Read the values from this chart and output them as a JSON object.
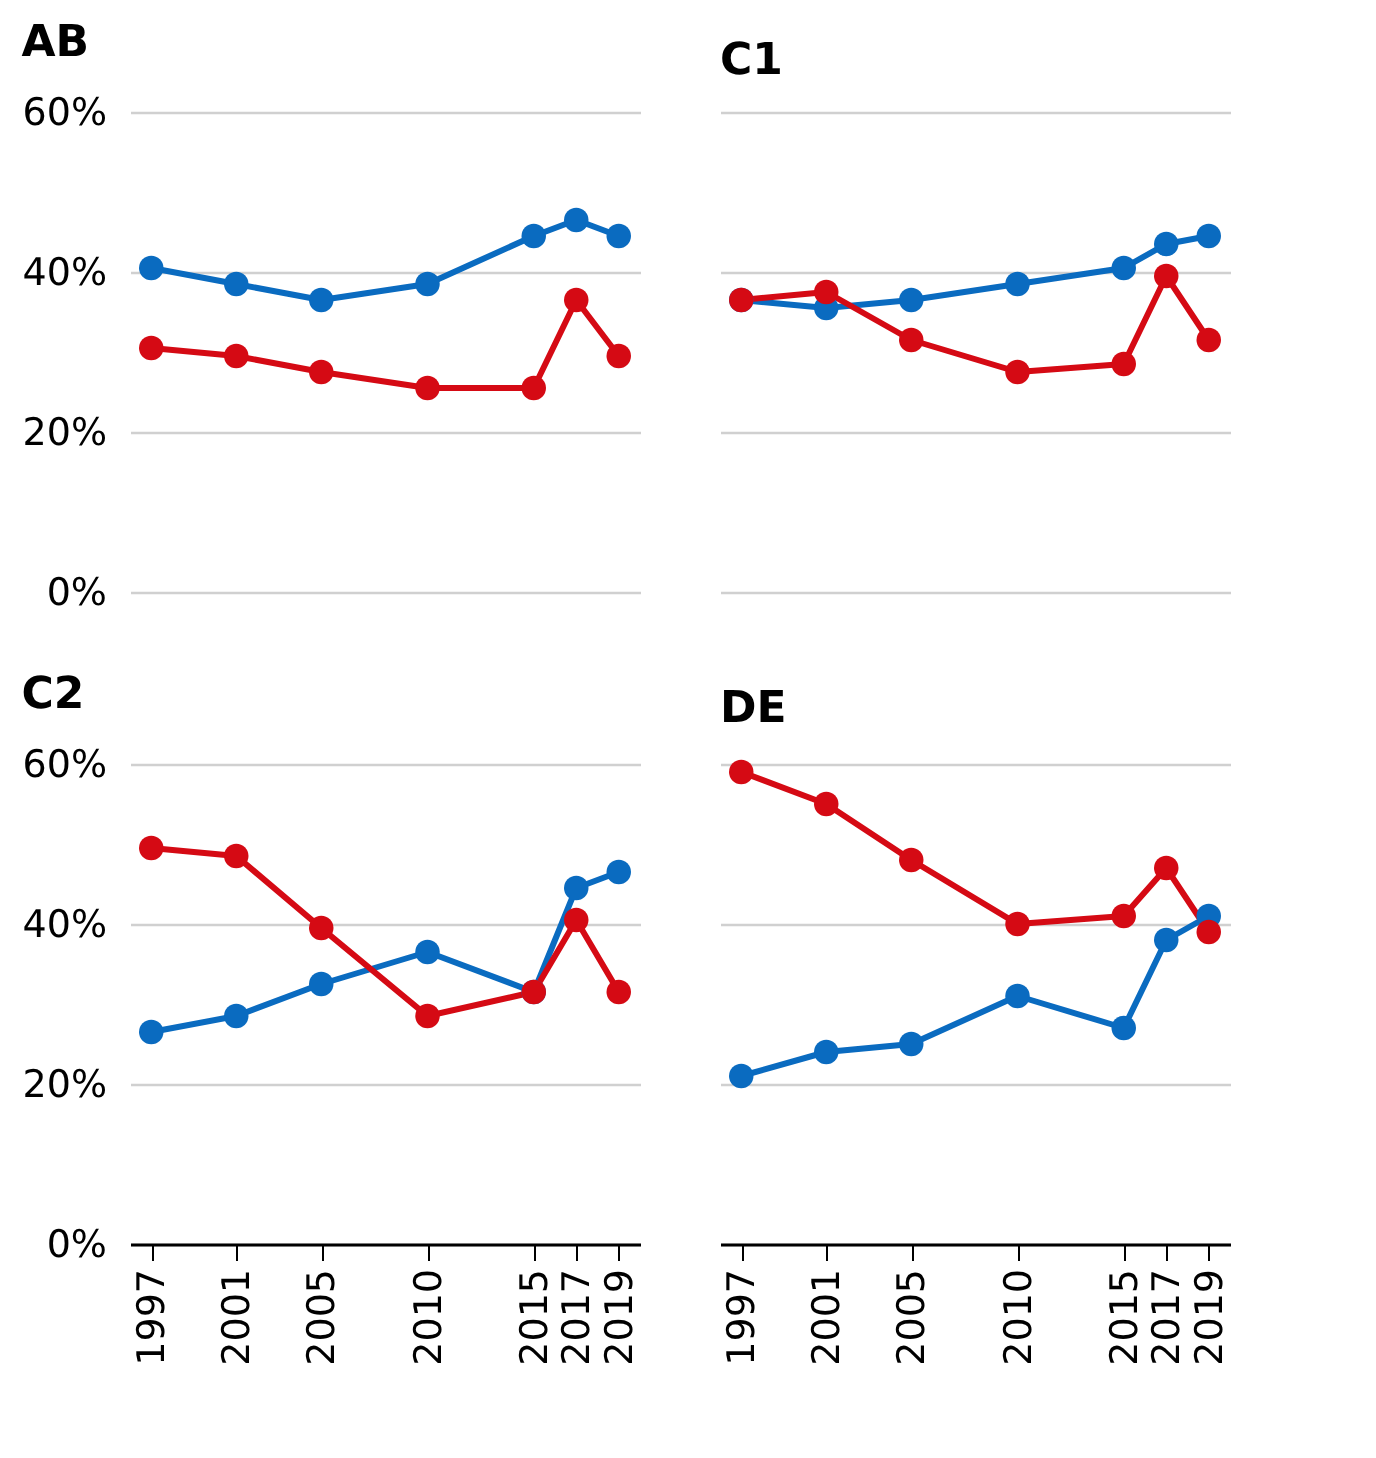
{
  "chart_data": [
    {
      "type": "line",
      "title": "AB",
      "x": [
        1997,
        2001,
        2005,
        2010,
        2015,
        2017,
        2019
      ],
      "xlim": [
        1996,
        2020
      ],
      "xticks": [
        1997,
        2001,
        2005,
        2010,
        2015,
        2017,
        2019
      ],
      "ylim": [
        0,
        60
      ],
      "yticks": [
        {
          "value": 0,
          "label": "0%"
        },
        {
          "value": 20,
          "label": "20%"
        },
        {
          "value": 40,
          "label": "40%"
        },
        {
          "value": 60,
          "label": "60%"
        }
      ],
      "grid": "y",
      "legend": false,
      "marker": "circle",
      "line_style": "solid",
      "tick_labels": "y",
      "series": [
        {
          "color": "#0a6bc0",
          "values": [
            40.5,
            38.5,
            36.5,
            38.5,
            44.5,
            46.5,
            44.5
          ]
        },
        {
          "color": "#d50a14",
          "values": [
            30.5,
            29.5,
            27.5,
            25.5,
            25.5,
            36.5,
            29.5
          ]
        }
      ]
    },
    {
      "type": "line",
      "title": "C1",
      "x": [
        1997,
        2001,
        2005,
        2010,
        2015,
        2017,
        2019
      ],
      "xlim": [
        1996,
        2020
      ],
      "xticks": [
        1997,
        2001,
        2005,
        2010,
        2015,
        2017,
        2019
      ],
      "ylim": [
        0,
        60
      ],
      "yticks": [
        {
          "value": 0,
          "label": null
        },
        {
          "value": 20,
          "label": null
        },
        {
          "value": 40,
          "label": null
        },
        {
          "value": 60,
          "label": null
        }
      ],
      "grid": "y",
      "legend": false,
      "marker": "circle",
      "line_style": "solid",
      "tick_labels": false,
      "series": [
        {
          "color": "#0a6bc0",
          "values": [
            36.5,
            35.5,
            36.5,
            38.5,
            40.5,
            43.5,
            44.5
          ]
        },
        {
          "color": "#d50a14",
          "values": [
            36.5,
            37.5,
            31.5,
            27.5,
            28.5,
            39.5,
            31.5
          ]
        }
      ]
    },
    {
      "type": "line",
      "title": "C2",
      "x": [
        1997,
        2001,
        2005,
        2010,
        2015,
        2017,
        2019
      ],
      "xlim": [
        1996,
        2020
      ],
      "xticks": [
        1997,
        2001,
        2005,
        2010,
        2015,
        2017,
        2019
      ],
      "ylim": [
        0,
        60
      ],
      "yticks": [
        {
          "value": 0,
          "label": "0%"
        },
        {
          "value": 20,
          "label": "20%"
        },
        {
          "value": 40,
          "label": "40%"
        },
        {
          "value": 60,
          "label": "60%"
        }
      ],
      "grid": "y",
      "legend": false,
      "marker": "circle",
      "line_style": "solid",
      "series": [
        {
          "color": "#0a6bc0",
          "values": [
            26.5,
            28.5,
            32.5,
            36.5,
            31.5,
            44.5,
            46.5
          ]
        },
        {
          "color": "#d50a14",
          "values": [
            49.5,
            48.5,
            39.5,
            28.5,
            31.5,
            40.5,
            31.5
          ]
        }
      ]
    },
    {
      "type": "line",
      "title": "DE",
      "x": [
        1997,
        2001,
        2005,
        2010,
        2015,
        2017,
        2019
      ],
      "xlim": [
        1996,
        2020
      ],
      "xticks": [
        1997,
        2001,
        2005,
        2010,
        2015,
        2017,
        2019
      ],
      "ylim": [
        0,
        60
      ],
      "yticks": [
        {
          "value": 0,
          "label": null
        },
        {
          "value": 20,
          "label": null
        },
        {
          "value": 40,
          "label": null
        },
        {
          "value": 60,
          "label": null
        }
      ],
      "grid": "y",
      "legend": false,
      "marker": "circle",
      "line_style": "solid",
      "tick_labels": "x",
      "series": [
        {
          "color": "#0a6bc0",
          "values": [
            21,
            24,
            25,
            31,
            27,
            38,
            41
          ]
        },
        {
          "color": "#d50a14",
          "values": [
            59,
            55,
            48,
            40,
            41,
            47,
            39
          ]
        }
      ]
    }
  ]
}
